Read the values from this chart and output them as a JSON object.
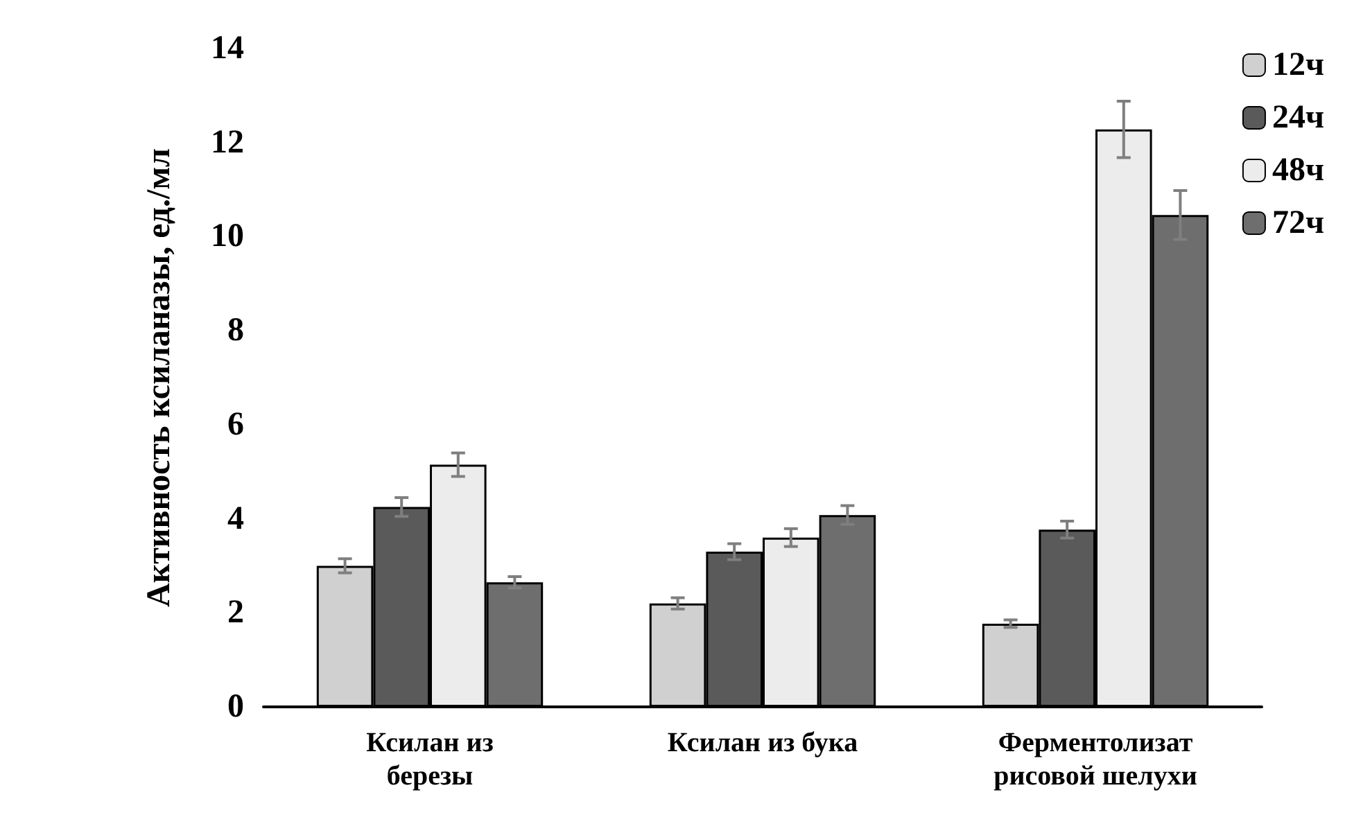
{
  "chart_data": {
    "type": "bar",
    "ylabel": "Активность ксиланазы, ед./мл",
    "categories": [
      "Ксилан из березы",
      "Ксилан из бука",
      "Ферментолизат рисовой шелухи"
    ],
    "series": [
      {
        "name": "12ч",
        "color": "#d0d0d0",
        "values": [
          3.0,
          2.2,
          1.77
        ],
        "errors": [
          0.15,
          0.12,
          0.08
        ]
      },
      {
        "name": "24ч",
        "color": "#5a5a5a",
        "values": [
          4.25,
          3.3,
          3.77
        ],
        "errors": [
          0.2,
          0.17,
          0.18
        ]
      },
      {
        "name": "48ч",
        "color": "#ececec",
        "values": [
          5.15,
          3.6,
          12.28
        ],
        "errors": [
          0.25,
          0.19,
          0.6
        ]
      },
      {
        "name": "72ч",
        "color": "#6e6e6e",
        "values": [
          2.65,
          4.08,
          10.46
        ],
        "errors": [
          0.12,
          0.2,
          0.52
        ]
      }
    ],
    "ylim": [
      0,
      14
    ],
    "yticks": [
      0,
      2,
      4,
      6,
      8,
      10,
      12,
      14
    ],
    "grid": false,
    "legend": "top right"
  }
}
